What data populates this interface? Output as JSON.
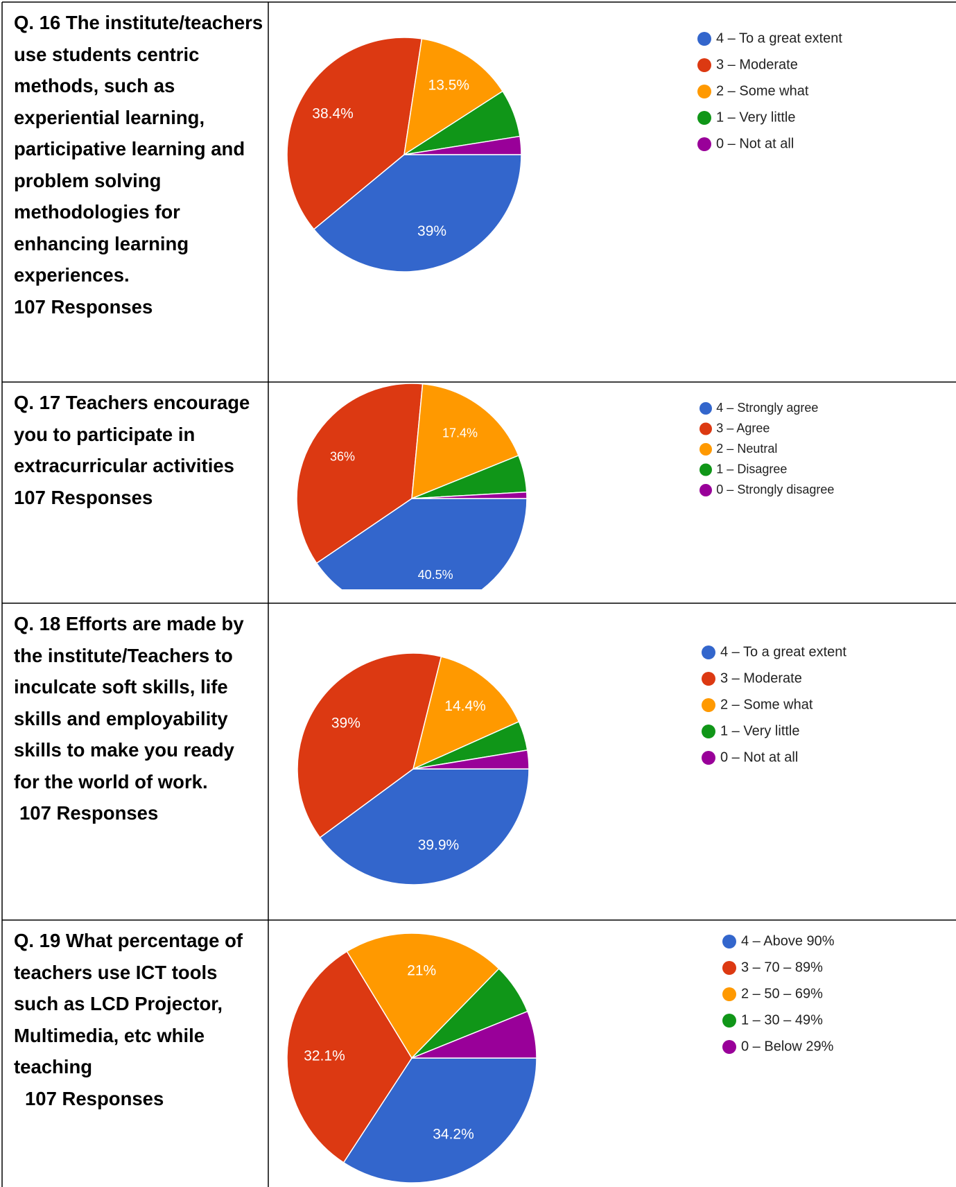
{
  "chart_data": [
    {
      "type": "pie",
      "title": "Q. 16 The institute/teachers use students centric methods, such as experiential learning, participative learning and problem solving methodologies for enhancing learning experiences.",
      "subtitle": "107 Responses",
      "categories": [
        "4 – To a great extent",
        "3 – Moderate",
        "2 – Some what",
        "1 – Very little",
        "0 – Not at all"
      ],
      "values": [
        39,
        38.4,
        13.5,
        6.6,
        2.5
      ],
      "value_labels": [
        "39%",
        "38.4%",
        "13.5%",
        null,
        null
      ],
      "colors": [
        "#3366cc",
        "#dc3912",
        "#ff9900",
        "#109618",
        "#990099"
      ]
    },
    {
      "type": "pie",
      "title": "Q. 17 Teachers encourage you to participate in extracurricular activities",
      "subtitle": "107 Responses",
      "categories": [
        "4 – Strongly agree",
        "3 – Agree",
        "2 – Neutral",
        "1 – Disagree",
        "0 – Strongly disagree"
      ],
      "values": [
        40.5,
        36,
        17.4,
        5.2,
        0.9
      ],
      "value_labels": [
        "40.5%",
        "36%",
        "17.4%",
        null,
        null
      ],
      "colors": [
        "#3366cc",
        "#dc3912",
        "#ff9900",
        "#109618",
        "#990099"
      ]
    },
    {
      "type": "pie",
      "title": "Q. 18 Efforts are made by the institute/Teachers to inculcate soft skills, life skills and employability skills to make you ready for the world of work.",
      "subtitle": "107 Responses",
      "categories": [
        "4 – To a great extent",
        "3 – Moderate",
        "2 – Some what",
        "1 – Very little",
        "0 – Not at all"
      ],
      "values": [
        39.9,
        39,
        14.4,
        4.1,
        2.6
      ],
      "value_labels": [
        "39.9%",
        "39%",
        "14.4%",
        null,
        null
      ],
      "colors": [
        "#3366cc",
        "#dc3912",
        "#ff9900",
        "#109618",
        "#990099"
      ]
    },
    {
      "type": "pie",
      "title": "Q. 19 What percentage of teachers use ICT tools such as LCD Projector, Multimedia, etc while teaching",
      "subtitle": "107  Responses",
      "categories": [
        "4 – Above 90%",
        "3 – 70 – 89%",
        "2 – 50 – 69%",
        "1 – 30 – 49%",
        "0 – Below 29%"
      ],
      "values": [
        34.2,
        32.1,
        21,
        6.6,
        6.1
      ],
      "value_labels": [
        "34.2%",
        "32.1%",
        "21%",
        null,
        null
      ],
      "colors": [
        "#3366cc",
        "#dc3912",
        "#ff9900",
        "#109618",
        "#990099"
      ]
    }
  ]
}
